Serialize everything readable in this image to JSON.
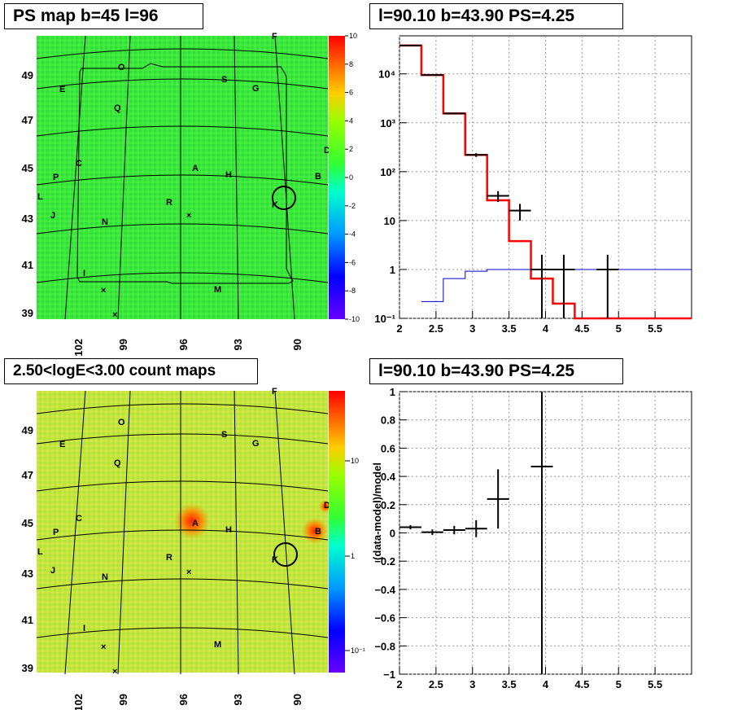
{
  "panels": {
    "ps_map_title": "PS map b=45 l=96",
    "spectrum_title": "l=90.10 b=43.90 PS=4.25",
    "count_map_title": "2.50<logE<3.00 count maps",
    "residual_title": "l=90.10 b=43.90 PS=4.25"
  },
  "colors": {
    "map_green": "#33ee33",
    "map_yellow": "#c8e83c",
    "model_line": "#ff0000",
    "bkg_line": "#0000cc",
    "data": "#000000"
  },
  "maps": {
    "x_ticks": [
      "102",
      "99",
      "96",
      "93",
      "90"
    ],
    "y_ticks": [
      "39",
      "41",
      "43",
      "45",
      "47",
      "49"
    ],
    "sources": [
      "F",
      "O",
      "S",
      "G",
      "E",
      "Q",
      "D",
      "C",
      "A",
      "H",
      "B",
      "P",
      "L",
      "R",
      "K",
      "J",
      "N",
      "I",
      "M"
    ],
    "ps_colorbar": [
      "10",
      "8",
      "6",
      "4",
      "2",
      "0",
      "-2",
      "-4",
      "-6",
      "-8",
      "-10"
    ],
    "count_colorbar": [
      "10",
      "1",
      "10⁻¹"
    ]
  },
  "chart_data": [
    {
      "type": "heatmap",
      "title": "PS map b=45 l=96",
      "xlabel": "",
      "ylabel": "",
      "xlim": [
        104,
        88
      ],
      "ylim": [
        38.8,
        50.5
      ],
      "zlim": [
        -10,
        10
      ],
      "colorbar_ticks": [
        -10,
        -8,
        -6,
        -4,
        -2,
        0,
        2,
        4,
        6,
        8,
        10
      ]
    },
    {
      "type": "line",
      "title": "l=90.10 b=43.90 PS=4.25",
      "xlabel": "",
      "ylabel": "",
      "xlim": [
        2,
        6
      ],
      "ylim": [
        0.1,
        60000
      ],
      "yscale": "log",
      "x_ticks": [
        "2",
        "2.5",
        "3",
        "3.5",
        "4",
        "4.5",
        "5",
        "5.5"
      ],
      "y_ticks": [
        "10⁻¹",
        "1",
        "10",
        "10²",
        "10³",
        "10⁴"
      ],
      "grid": true,
      "series": [
        {
          "type": "step",
          "edges": [
            2,
            2.3,
            2.6,
            2.9,
            3.2,
            3.5,
            3.8,
            4.1,
            4.4,
            4.7,
            5.0,
            5.3,
            5.6,
            6.0
          ],
          "values": [
            38000,
            9500,
            1550,
            220,
            26,
            3.8,
            0.65,
            0.2,
            0.09,
            0.09,
            0.09,
            0.09,
            0.09
          ]
        },
        {
          "type": "step",
          "edges": [
            2.3,
            2.6,
            2.9,
            3.2,
            3.5,
            3.8,
            4.1,
            4.4,
            4.7,
            5.0,
            5.3,
            5.6,
            6.0
          ],
          "values": [
            0.22,
            0.65,
            0.92,
            1.0,
            1.0,
            1.0,
            1.0,
            1.0,
            1.0,
            1.0,
            1.0,
            1.0
          ]
        },
        {
          "type": "errorbar",
          "points": [
            {
              "x": 2.15,
              "y": 38000,
              "xerr": 0.15,
              "ylo": 37000,
              "yhi": 39000
            },
            {
              "x": 2.45,
              "y": 9500,
              "xerr": 0.15,
              "ylo": 9300,
              "yhi": 9700
            },
            {
              "x": 2.75,
              "y": 1550,
              "xerr": 0.15,
              "ylo": 1500,
              "yhi": 1600
            },
            {
              "x": 3.05,
              "y": 220,
              "xerr": 0.15,
              "ylo": 200,
              "yhi": 240
            },
            {
              "x": 3.35,
              "y": 32,
              "xerr": 0.15,
              "ylo": 24,
              "yhi": 40
            },
            {
              "x": 3.65,
              "y": 16,
              "xerr": 0.15,
              "ylo": 10,
              "yhi": 22
            },
            {
              "x": 3.95,
              "y": 1.0,
              "xerr": 0.15,
              "ylo": 0.1,
              "yhi": 2.0
            },
            {
              "x": 4.25,
              "y": 1.0,
              "xerr": 0.15,
              "ylo": 0.1,
              "yhi": 2.0
            },
            {
              "x": 4.85,
              "y": 1.0,
              "xerr": 0.15,
              "ylo": 0.1,
              "yhi": 2.0
            }
          ]
        }
      ]
    },
    {
      "type": "heatmap",
      "title": "2.50<logE<3.00 count maps",
      "xlabel": "",
      "ylabel": "",
      "xlim": [
        104,
        88
      ],
      "ylim": [
        38.8,
        50.5
      ],
      "zscale": "log",
      "colorbar_ticks": [
        "10",
        "1",
        "10⁻¹"
      ]
    },
    {
      "type": "scatter",
      "title": "l=90.10 b=43.90 PS=4.25",
      "xlabel": "",
      "ylabel": "(data-model)/model",
      "xlim": [
        2,
        6
      ],
      "ylim": [
        -1,
        1
      ],
      "x_ticks": [
        "2",
        "2.5",
        "3",
        "3.5",
        "4",
        "4.5",
        "5",
        "5.5"
      ],
      "y_ticks": [
        "−1",
        "−0.8",
        "−0.6",
        "−0.4",
        "−0.2",
        "0",
        "0.2",
        "0.4",
        "0.6",
        "0.8",
        "1"
      ],
      "grid": true,
      "points": [
        {
          "x": 2.15,
          "y": 0.04,
          "xerr": 0.15,
          "yerr": 0.015
        },
        {
          "x": 2.45,
          "y": 0.005,
          "xerr": 0.15,
          "yerr": 0.02
        },
        {
          "x": 2.75,
          "y": 0.02,
          "xerr": 0.15,
          "yerr": 0.03
        },
        {
          "x": 3.05,
          "y": 0.03,
          "xerr": 0.15,
          "yerr": 0.06
        },
        {
          "x": 3.35,
          "y": 0.24,
          "xerr": 0.15,
          "yerr": 0.21
        },
        {
          "x": 3.95,
          "y": 0.47,
          "xerr": 0.15,
          "yerr": 1.6
        }
      ]
    }
  ]
}
